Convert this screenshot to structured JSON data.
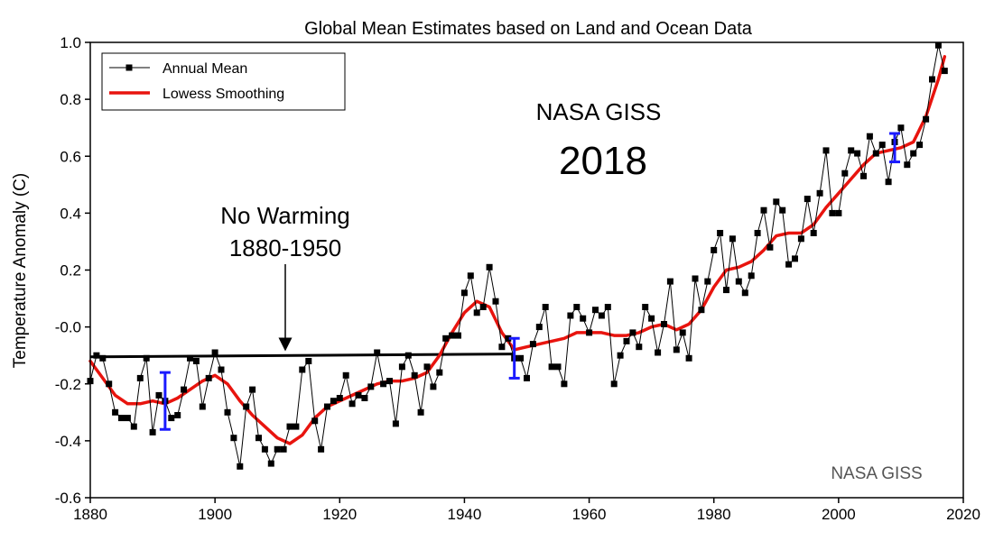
{
  "chart_data": {
    "type": "line",
    "title": "Global Mean Estimates based on Land and Ocean Data",
    "xlabel": "",
    "ylabel": "Temperature Anomaly (C)",
    "xlim": [
      1880,
      2020
    ],
    "ylim": [
      -0.6,
      1.0
    ],
    "xticks": [
      "1880",
      "1900",
      "1920",
      "1940",
      "1960",
      "1980",
      "2000",
      "2020"
    ],
    "yticks": [
      "-0.6",
      "-0.4",
      "-0.2",
      "-0.0",
      "0.2",
      "0.4",
      "0.6",
      "0.8",
      "1.0"
    ],
    "legend": {
      "position": "top-left",
      "entries": [
        "Annual Mean",
        "Lowess Smoothing"
      ]
    },
    "colors": {
      "annual": "#000000",
      "lowess": "#e8140e",
      "error_bars": "#1a1aff",
      "trend": "#000000"
    },
    "series": [
      {
        "name": "Annual Mean",
        "x": [
          1880,
          1881,
          1882,
          1883,
          1884,
          1885,
          1886,
          1887,
          1888,
          1889,
          1890,
          1891,
          1892,
          1893,
          1894,
          1895,
          1896,
          1897,
          1898,
          1899,
          1900,
          1901,
          1902,
          1903,
          1904,
          1905,
          1906,
          1907,
          1908,
          1909,
          1910,
          1911,
          1912,
          1913,
          1914,
          1915,
          1916,
          1917,
          1918,
          1919,
          1920,
          1921,
          1922,
          1923,
          1924,
          1925,
          1926,
          1927,
          1928,
          1929,
          1930,
          1931,
          1932,
          1933,
          1934,
          1935,
          1936,
          1937,
          1938,
          1939,
          1940,
          1941,
          1942,
          1943,
          1944,
          1945,
          1946,
          1947,
          1948,
          1949,
          1950,
          1951,
          1952,
          1953,
          1954,
          1955,
          1956,
          1957,
          1958,
          1959,
          1960,
          1961,
          1962,
          1963,
          1964,
          1965,
          1966,
          1967,
          1968,
          1969,
          1970,
          1971,
          1972,
          1973,
          1974,
          1975,
          1976,
          1977,
          1978,
          1979,
          1980,
          1981,
          1982,
          1983,
          1984,
          1985,
          1986,
          1987,
          1988,
          1989,
          1990,
          1991,
          1992,
          1993,
          1994,
          1995,
          1996,
          1997,
          1998,
          1999,
          2000,
          2001,
          2002,
          2003,
          2004,
          2005,
          2006,
          2007,
          2008,
          2009,
          2010,
          2011,
          2012,
          2013,
          2014,
          2015,
          2016,
          2017
        ],
        "values": [
          -0.19,
          -0.1,
          -0.11,
          -0.2,
          -0.3,
          -0.32,
          -0.32,
          -0.35,
          -0.18,
          -0.11,
          -0.37,
          -0.24,
          -0.26,
          -0.32,
          -0.31,
          -0.22,
          -0.11,
          -0.12,
          -0.28,
          -0.18,
          -0.09,
          -0.15,
          -0.3,
          -0.39,
          -0.49,
          -0.28,
          -0.22,
          -0.39,
          -0.43,
          -0.48,
          -0.43,
          -0.43,
          -0.35,
          -0.35,
          -0.15,
          -0.12,
          -0.33,
          -0.43,
          -0.28,
          -0.26,
          -0.25,
          -0.17,
          -0.27,
          -0.24,
          -0.25,
          -0.21,
          -0.09,
          -0.2,
          -0.19,
          -0.34,
          -0.14,
          -0.1,
          -0.17,
          -0.3,
          -0.14,
          -0.21,
          -0.16,
          -0.04,
          -0.03,
          -0.03,
          0.12,
          0.18,
          0.05,
          0.07,
          0.21,
          0.09,
          -0.07,
          -0.04,
          -0.11,
          -0.11,
          -0.18,
          -0.06,
          0.0,
          0.07,
          -0.14,
          -0.14,
          -0.2,
          0.04,
          0.07,
          0.03,
          -0.02,
          0.06,
          0.04,
          0.07,
          -0.2,
          -0.1,
          -0.05,
          -0.02,
          -0.07,
          0.07,
          0.03,
          -0.09,
          0.01,
          0.16,
          -0.08,
          -0.02,
          -0.11,
          0.17,
          0.06,
          0.16,
          0.27,
          0.33,
          0.13,
          0.31,
          0.16,
          0.12,
          0.18,
          0.33,
          0.41,
          0.28,
          0.44,
          0.41,
          0.22,
          0.24,
          0.31,
          0.45,
          0.33,
          0.47,
          0.62,
          0.4,
          0.4,
          0.54,
          0.62,
          0.61,
          0.53,
          0.67,
          0.61,
          0.64,
          0.51,
          0.65,
          0.7,
          0.57,
          0.61,
          0.64,
          0.73,
          0.87,
          0.99,
          0.9
        ]
      },
      {
        "name": "Lowess Smoothing",
        "x": [
          1880,
          1882,
          1884,
          1886,
          1888,
          1890,
          1892,
          1894,
          1896,
          1898,
          1900,
          1902,
          1904,
          1906,
          1908,
          1910,
          1912,
          1914,
          1916,
          1918,
          1920,
          1922,
          1924,
          1926,
          1928,
          1930,
          1932,
          1934,
          1936,
          1938,
          1940,
          1942,
          1944,
          1946,
          1948,
          1950,
          1952,
          1954,
          1956,
          1958,
          1960,
          1962,
          1964,
          1966,
          1968,
          1970,
          1972,
          1974,
          1976,
          1978,
          1980,
          1982,
          1984,
          1986,
          1988,
          1990,
          1992,
          1994,
          1996,
          1998,
          2000,
          2002,
          2004,
          2006,
          2008,
          2010,
          2012,
          2014,
          2016,
          2017
        ],
        "values": [
          -0.12,
          -0.18,
          -0.24,
          -0.27,
          -0.27,
          -0.26,
          -0.27,
          -0.25,
          -0.22,
          -0.19,
          -0.17,
          -0.2,
          -0.26,
          -0.31,
          -0.35,
          -0.39,
          -0.41,
          -0.38,
          -0.32,
          -0.28,
          -0.26,
          -0.24,
          -0.22,
          -0.2,
          -0.19,
          -0.19,
          -0.18,
          -0.16,
          -0.1,
          -0.02,
          0.05,
          0.09,
          0.07,
          -0.02,
          -0.08,
          -0.07,
          -0.06,
          -0.05,
          -0.04,
          -0.02,
          -0.02,
          -0.02,
          -0.03,
          -0.03,
          -0.02,
          0.0,
          0.01,
          -0.01,
          0.01,
          0.06,
          0.14,
          0.2,
          0.21,
          0.23,
          0.27,
          0.32,
          0.33,
          0.33,
          0.36,
          0.42,
          0.47,
          0.52,
          0.57,
          0.61,
          0.62,
          0.63,
          0.65,
          0.74,
          0.87,
          0.95
        ]
      }
    ],
    "trend_line": {
      "x": [
        1880,
        1948
      ],
      "y": [
        -0.105,
        -0.095
      ]
    },
    "error_bars": [
      {
        "x": 1892,
        "low": -0.36,
        "high": -0.16
      },
      {
        "x": 1948,
        "low": -0.18,
        "high": -0.04
      },
      {
        "x": 2009,
        "low": 0.58,
        "high": 0.68
      }
    ],
    "annotations": {
      "no_warming_line1": "No Warming",
      "no_warming_line2": "1880-1950",
      "source_line1": "NASA GISS",
      "source_line2": "2018",
      "watermark": "NASA GISS"
    }
  }
}
